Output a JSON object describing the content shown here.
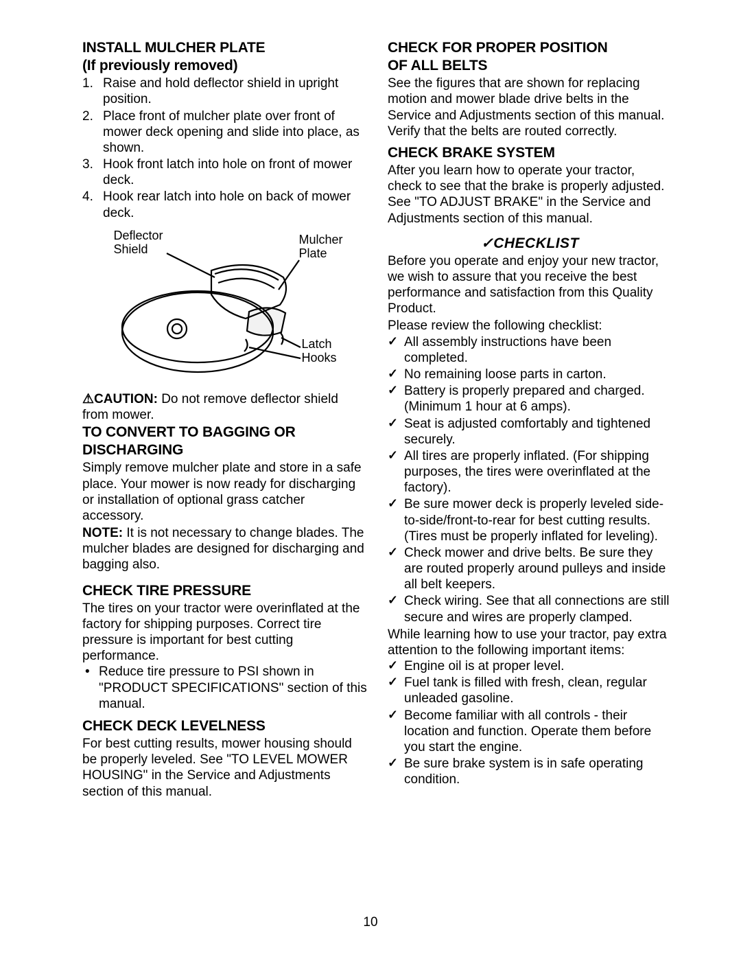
{
  "page_number": "10",
  "left": {
    "install_mulcher": {
      "title_line1": "INSTALL MULCHER PLATE",
      "title_line2": "(If previously removed)",
      "steps": [
        "Raise and hold deflector shield in upright position.",
        "Place front of mulcher plate over front of mower deck opening and slide into place, as shown.",
        "Hook front latch into hole on front of mower deck.",
        "Hook rear latch into hole on back of mower deck."
      ]
    },
    "figure": {
      "deflector_label": "Deflector\nShield",
      "mulcher_label": "Mulcher\nPlate",
      "latch_label": "Latch\nHooks"
    },
    "caution_label": "⚠CAUTION:",
    "caution_text": " Do not remove deflector shield from mower.",
    "convert": {
      "title_line1": "TO CONVERT TO BAGGING OR",
      "title_line2": "DISCHARGING",
      "body": "Simply remove mulcher plate and store in a safe place. Your mower is now ready for discharging or installation of optional grass catcher accessory.",
      "note_label": "NOTE:",
      "note_text": " It is not necessary to change blades. The mulcher blades are designed for discharging and bagging also."
    },
    "tire": {
      "title": "CHECK TIRE PRESSURE",
      "body": "The tires on your tractor were overinflated at the factory for shipping purposes. Correct tire pressure is important for best cutting performance.",
      "bullet": "Reduce tire pressure to PSI shown in \"PRODUCT SPECIFICATIONS\" section of this manual."
    },
    "deck": {
      "title": "CHECK DECK LEVELNESS",
      "body": "For best cutting results, mower housing should be properly leveled. See \"TO LEVEL MOWER HOUSING\" in the Service and Adjustments section of this manual."
    }
  },
  "right": {
    "belts": {
      "title_line1": "CHECK FOR PROPER POSITION",
      "title_line2": "OF ALL BELTS",
      "body": "See the figures that are shown for replacing motion and mower blade drive belts in the Service and Adjustments section of this manual. Verify that the belts are routed correctly."
    },
    "brake": {
      "title": "CHECK BRAKE SYSTEM",
      "body": "After you learn how to operate your tractor, check to see that the brake is properly adjusted. See \"TO ADJUST BRAKE\" in the Service and Adjustments section of this manual."
    },
    "checklist": {
      "title": "✓CHECKLIST",
      "intro": "Before you operate and enjoy your new tractor, we wish to assure that you receive the best performance and satisfaction from this Quality Product.",
      "please": "Please review the following checklist:",
      "items1": [
        "All assembly instructions have been completed.",
        "No remaining loose parts in carton.",
        "Battery is properly prepared and charged. (Minimum 1 hour at 6 amps).",
        "Seat is adjusted comfortably and tightened securely.",
        "All tires are properly inflated. (For shipping purposes, the tires were overinflated at the factory).",
        "Be sure mower deck is properly leveled side-to-side/front-to-rear for best cutting results. (Tires must be properly inflated for leveling).",
        "Check mower and drive belts. Be sure they are routed properly around pulleys and inside all belt keepers.",
        "Check wiring. See that all connections are still secure and wires are properly clamped."
      ],
      "mid": "While learning how to use your tractor, pay extra attention to the following important items:",
      "items2": [
        "Engine oil is at proper level.",
        "Fuel tank is filled with fresh, clean, regular unleaded gasoline.",
        "Become familiar with all controls - their location and function. Operate them before you start the engine.",
        "Be sure brake system is in safe operating condition."
      ]
    }
  }
}
